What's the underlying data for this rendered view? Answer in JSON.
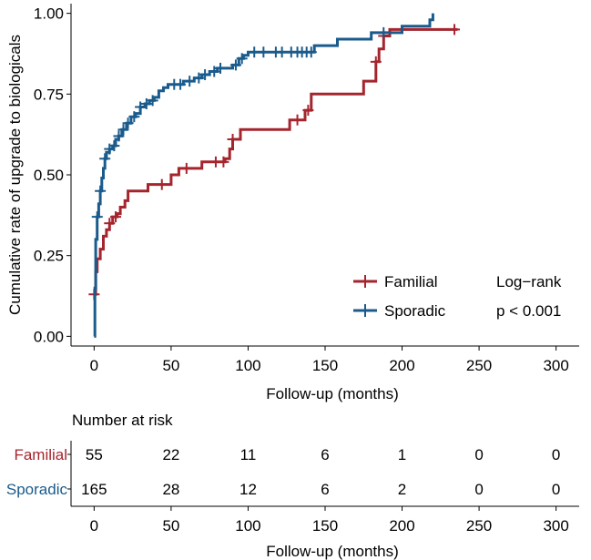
{
  "chart_data": {
    "type": "line",
    "subtype": "kaplan-meier-step",
    "xlabel": "Follow-up (months)",
    "ylabel": "Cumulative rate of upgrade to biologicals",
    "xlim": [
      -15,
      315
    ],
    "ylim": [
      -0.03,
      1.03
    ],
    "x_ticks": [
      0,
      50,
      100,
      150,
      200,
      250,
      300
    ],
    "y_ticks": [
      0.0,
      0.25,
      0.5,
      0.75,
      1.0
    ],
    "x_tick_labels": [
      "0",
      "50",
      "100",
      "150",
      "200",
      "250",
      "300"
    ],
    "y_tick_labels": [
      "0.00",
      "0.25",
      "0.50",
      "0.75",
      "1.00"
    ],
    "grid": false,
    "legend": {
      "placement": "bottom-right",
      "entries": [
        "Familial",
        "Sporadic"
      ],
      "test_label": "Log−rank",
      "p_value": "p < 0.001"
    },
    "series": [
      {
        "name": "Familial",
        "color": "#a5252e",
        "steps": [
          [
            0,
            0.13
          ],
          [
            1,
            0.2
          ],
          [
            2,
            0.24
          ],
          [
            4,
            0.27
          ],
          [
            6,
            0.31
          ],
          [
            8,
            0.33
          ],
          [
            10,
            0.35
          ],
          [
            12,
            0.37
          ],
          [
            15,
            0.38
          ],
          [
            17,
            0.4
          ],
          [
            20,
            0.42
          ],
          [
            22,
            0.45
          ],
          [
            35,
            0.47
          ],
          [
            50,
            0.5
          ],
          [
            55,
            0.52
          ],
          [
            70,
            0.54
          ],
          [
            85,
            0.55
          ],
          [
            88,
            0.58
          ],
          [
            90,
            0.61
          ],
          [
            95,
            0.64
          ],
          [
            127,
            0.67
          ],
          [
            137,
            0.7
          ],
          [
            141,
            0.75
          ],
          [
            157,
            0.75
          ],
          [
            175,
            0.79
          ],
          [
            180,
            0.79
          ],
          [
            183,
            0.85
          ],
          [
            185,
            0.89
          ],
          [
            188,
            0.93
          ],
          [
            192,
            0.95
          ],
          [
            236,
            0.95
          ]
        ],
        "censor_x": [
          0,
          10,
          14,
          44,
          60,
          79,
          84,
          90,
          132,
          139,
          183,
          188,
          234
        ]
      },
      {
        "name": "Sporadic",
        "color": "#1a5b8c",
        "steps": [
          [
            0,
            0.0
          ],
          [
            0.5,
            0.15
          ],
          [
            1,
            0.3
          ],
          [
            2,
            0.37
          ],
          [
            3,
            0.41
          ],
          [
            4,
            0.45
          ],
          [
            5,
            0.49
          ],
          [
            6,
            0.52
          ],
          [
            7,
            0.55
          ],
          [
            8,
            0.57
          ],
          [
            10,
            0.58
          ],
          [
            12,
            0.59
          ],
          [
            14,
            0.61
          ],
          [
            16,
            0.62
          ],
          [
            18,
            0.64
          ],
          [
            21,
            0.66
          ],
          [
            24,
            0.68
          ],
          [
            27,
            0.69
          ],
          [
            30,
            0.71
          ],
          [
            33,
            0.72
          ],
          [
            36,
            0.73
          ],
          [
            39,
            0.74
          ],
          [
            42,
            0.76
          ],
          [
            45,
            0.77
          ],
          [
            48,
            0.78
          ],
          [
            58,
            0.79
          ],
          [
            65,
            0.8
          ],
          [
            70,
            0.81
          ],
          [
            75,
            0.82
          ],
          [
            80,
            0.83
          ],
          [
            90,
            0.84
          ],
          [
            94,
            0.86
          ],
          [
            97,
            0.87
          ],
          [
            100,
            0.88
          ],
          [
            140,
            0.88
          ],
          [
            143,
            0.9
          ],
          [
            158,
            0.92
          ],
          [
            180,
            0.94
          ],
          [
            200,
            0.96
          ],
          [
            218,
            0.98
          ],
          [
            220,
            1.0
          ]
        ],
        "censor_x": [
          2,
          4,
          7,
          10,
          13,
          16,
          19,
          22,
          26,
          30,
          34,
          38,
          52,
          56,
          62,
          68,
          72,
          78,
          82,
          92,
          96,
          104,
          110,
          118,
          122,
          128,
          132,
          135,
          138,
          141,
          188
        ]
      }
    ],
    "risk_table": {
      "title": "Number at risk",
      "times": [
        0,
        50,
        100,
        150,
        200,
        250,
        300
      ],
      "rows": [
        {
          "name": "Familial",
          "counts": [
            55,
            22,
            11,
            6,
            1,
            0,
            0
          ]
        },
        {
          "name": "Sporadic",
          "counts": [
            165,
            28,
            12,
            6,
            2,
            0,
            0
          ]
        }
      ],
      "xlabel": "Follow-up (months)",
      "x_tick_labels": [
        "0",
        "50",
        "100",
        "150",
        "200",
        "250",
        "300"
      ]
    }
  }
}
